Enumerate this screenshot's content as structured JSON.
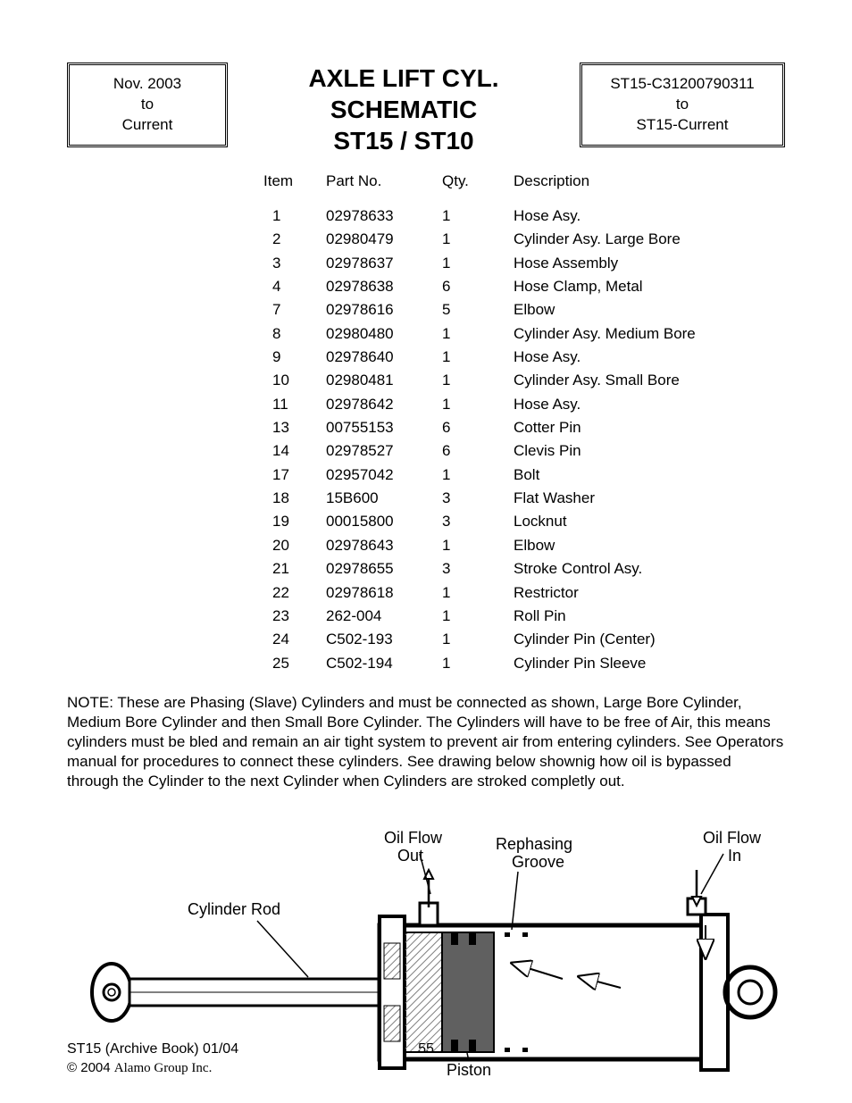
{
  "header": {
    "left_box": {
      "line1": "Nov. 2003",
      "line2": "to",
      "line3": "Current"
    },
    "title": {
      "line1": "AXLE LIFT CYL.",
      "line2": "SCHEMATIC",
      "line3": "ST15 / ST10"
    },
    "right_box": {
      "line1": "ST15-C31200790311",
      "line2": "to",
      "line3": "ST15-Current"
    }
  },
  "table": {
    "columns": {
      "item": "Item",
      "partno": "Part No.",
      "qty": "Qty.",
      "description": "Description"
    },
    "rows": [
      {
        "item": "1",
        "partno": "02978633",
        "qty": "1",
        "desc": "Hose Asy."
      },
      {
        "item": "2",
        "partno": "02980479",
        "qty": "1",
        "desc": "Cylinder Asy. Large Bore"
      },
      {
        "item": "3",
        "partno": "02978637",
        "qty": "1",
        "desc": "Hose Assembly"
      },
      {
        "item": "4",
        "partno": "02978638",
        "qty": "6",
        "desc": "Hose Clamp, Metal"
      },
      {
        "item": "7",
        "partno": "02978616",
        "qty": "5",
        "desc": "Elbow"
      },
      {
        "item": "8",
        "partno": "02980480",
        "qty": "1",
        "desc": "Cylinder Asy. Medium Bore"
      },
      {
        "item": "9",
        "partno": "02978640",
        "qty": "1",
        "desc": "Hose Asy."
      },
      {
        "item": "10",
        "partno": "02980481",
        "qty": "1",
        "desc": "Cylinder Asy. Small Bore"
      },
      {
        "item": "11",
        "partno": "02978642",
        "qty": "1",
        "desc": "Hose Asy."
      },
      {
        "item": "13",
        "partno": "00755153",
        "qty": "6",
        "desc": "Cotter Pin"
      },
      {
        "item": "14",
        "partno": "02978527",
        "qty": "6",
        "desc": "Clevis Pin"
      },
      {
        "item": "17",
        "partno": "02957042",
        "qty": "1",
        "desc": "Bolt"
      },
      {
        "item": "18",
        "partno": "15B600",
        "qty": "3",
        "desc": "Flat Washer"
      },
      {
        "item": "19",
        "partno": "00015800",
        "qty": "3",
        "desc": "Locknut"
      },
      {
        "item": "20",
        "partno": "02978643",
        "qty": "1",
        "desc": "Elbow"
      },
      {
        "item": "21",
        "partno": "02978655",
        "qty": "3",
        "desc": "Stroke Control Asy."
      },
      {
        "item": "22",
        "partno": "02978618",
        "qty": "1",
        "desc": "Restrictor"
      },
      {
        "item": "23",
        "partno": "262-004",
        "qty": "1",
        "desc": "Roll Pin"
      },
      {
        "item": "24",
        "partno": "C502-193",
        "qty": "1",
        "desc": "Cylinder Pin (Center)"
      },
      {
        "item": "25",
        "partno": "C502-194",
        "qty": "1",
        "desc": "Cylinder Pin Sleeve"
      }
    ]
  },
  "note": "NOTE: These are Phasing (Slave) Cylinders and must be connected as shown, Large Bore Cylinder, Medium Bore Cylinder and then Small Bore Cylinder. The Cylinders will have to be free of Air, this means cylinders must be bled and remain an air tight system to prevent air from entering cylinders. See Operators manual for procedures to connect these cylinders. See drawing below shownig how oil is bypassed through the Cylinder to the next Cylinder when Cylinders are stroked completly out.",
  "diagram": {
    "labels": {
      "oil_flow_out": "Oil Flow\nOut",
      "oil_flow_in": "Oil Flow\nIn",
      "rephasing_groove": "Rephasing\nGroove",
      "cylinder_rod": "Cylinder Rod",
      "piston": "Piston"
    },
    "colors": {
      "stroke": "#000000",
      "fill_body": "#ffffff",
      "fill_hatch": "#c0c0c0"
    }
  },
  "footer": {
    "archive": "ST15  (Archive Book) 01/04",
    "copyright_symbol": "©",
    "year": "2004",
    "company": "Alamo Group Inc.",
    "page": "55"
  }
}
